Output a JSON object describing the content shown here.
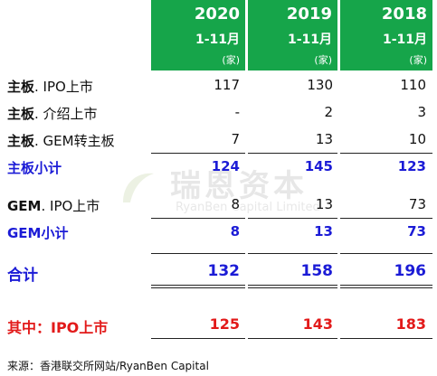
{
  "header": {
    "columns": [
      {
        "year": "2020",
        "period": "1-11月",
        "unit": "(家)"
      },
      {
        "year": "2019",
        "period": "1-11月",
        "unit": "(家)"
      },
      {
        "year": "2018",
        "period": "1-11月",
        "unit": "(家)"
      }
    ]
  },
  "rows": [
    {
      "bold": "主板",
      "rest": ". IPO上市",
      "values": [
        "117",
        "130",
        "110"
      ]
    },
    {
      "bold": "主板",
      "rest": ". 介绍上市",
      "values": [
        "-",
        "2",
        "3"
      ]
    },
    {
      "bold": "主板",
      "rest": ". GEM转主板",
      "values": [
        "7",
        "13",
        "10"
      ]
    },
    {
      "label": "主板小计",
      "values": [
        "124",
        "145",
        "123"
      ]
    },
    {
      "bold": "GEM",
      "rest": ". IPO上市",
      "values": [
        "8",
        "13",
        "73"
      ]
    },
    {
      "label": "GEM小计",
      "values": [
        "8",
        "13",
        "73"
      ]
    },
    {
      "label": "合计",
      "values": [
        "132",
        "158",
        "196"
      ]
    },
    {
      "label": "其中：IPO上市",
      "values": [
        "125",
        "143",
        "183"
      ]
    }
  ],
  "watermark": {
    "cn": "瑞恩资本",
    "en": "RyanBen Capital Limited"
  },
  "source": "来源：香港联交所网站/RyanBen Capital",
  "colors": {
    "header_bg": "#16a54a",
    "subtotal": "#1b1bd6",
    "ipo": "#e21a1a"
  }
}
